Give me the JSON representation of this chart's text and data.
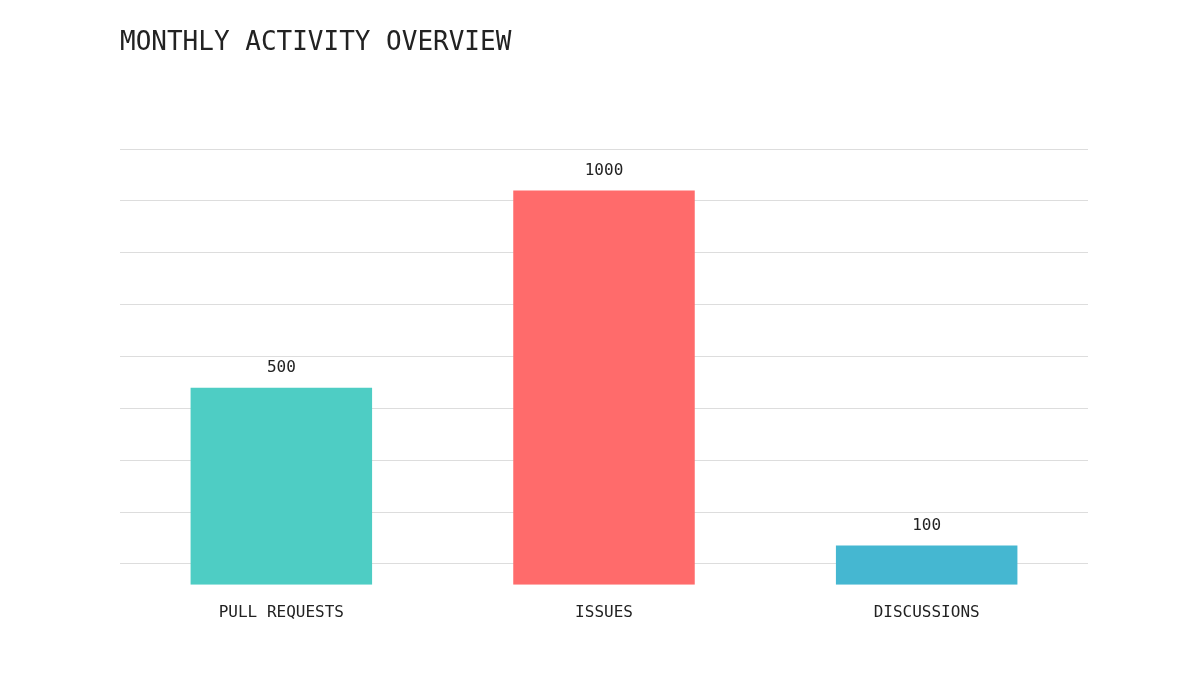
{
  "chart_data": {
    "type": "bar",
    "title": "MONTHLY ACTIVITY OVERVIEW",
    "categories": [
      "PULL REQUESTS",
      "ISSUES",
      "DISCUSSIONS"
    ],
    "values": [
      500,
      1000,
      100
    ],
    "colors": [
      "#4ecdc4",
      "#ff6b6b",
      "#45b7d1"
    ],
    "ylim": [
      0,
      1105
    ],
    "yticks": [
      {
        "value": 53,
        "label": null
      },
      {
        "value": 184,
        "label": null
      },
      {
        "value": 316,
        "label": null
      },
      {
        "value": 447,
        "label": null
      },
      {
        "value": 579,
        "label": null
      },
      {
        "value": 711,
        "label": null
      },
      {
        "value": 842,
        "label": null
      },
      {
        "value": 974,
        "label": null
      },
      {
        "value": 1105,
        "label": null
      }
    ],
    "grid": "y",
    "data_labels": true,
    "legend": false
  }
}
